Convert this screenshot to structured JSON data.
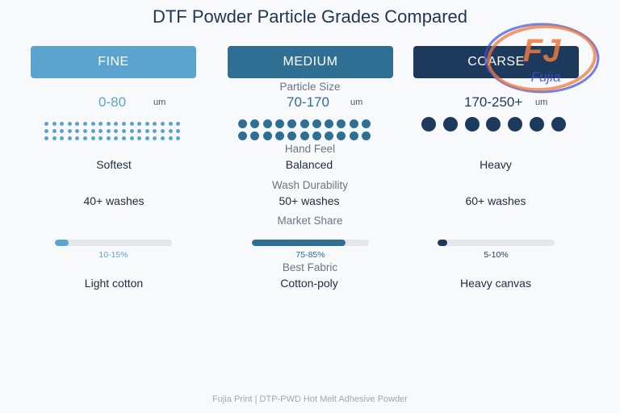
{
  "title": "DTF Powder Particle Grades Compared",
  "grades": [
    {
      "key": "fine",
      "label": "FINE",
      "color": "#5ba4cf",
      "size": "0-80",
      "unit": "um",
      "hand_feel": "Softest",
      "durability": "40+ washes",
      "market_share_text": "10-15%",
      "market_share_level": 0.12,
      "fabric": "Light cotton"
    },
    {
      "key": "medium",
      "label": "MEDIUM",
      "color": "#2f6f93",
      "size": "70-170",
      "unit": "um",
      "hand_feel": "Balanced",
      "durability": "50+ washes",
      "market_share_text": "75-85%",
      "market_share_level": 0.8,
      "fabric": "Cotton-poly"
    },
    {
      "key": "coarse",
      "label": "COARSE",
      "color": "#1d3a5c",
      "size": "170-250+",
      "unit": "um",
      "hand_feel": "Heavy",
      "durability": "60+ washes",
      "market_share_text": "5-10%",
      "market_share_level": 0.08,
      "fabric": "Heavy canvas"
    }
  ],
  "sections": {
    "particle_size": "Particle Size",
    "hand_feel": "Hand Feel",
    "wash_durability": "Wash Durability",
    "market_share": "Market Share",
    "best_fabric": "Best Fabric"
  },
  "logo": {
    "mark": "FJ",
    "name": "Fujia",
    "accent": "#f07a3c",
    "ring": "#3b4fd8"
  },
  "footer": "Fujia Print | DTP-PWD Hot Melt Adhesive Powder"
}
